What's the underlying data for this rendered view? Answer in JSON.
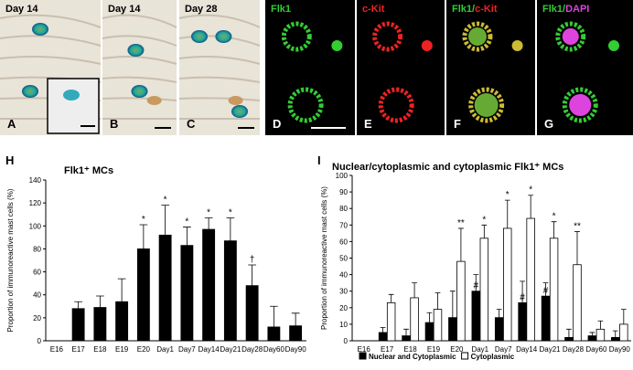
{
  "image_panels": [
    {
      "letter": "A",
      "caption": [
        {
          "text": "Day 14"
        }
      ]
    },
    {
      "letter": "B",
      "caption": [
        {
          "text": "Day 14"
        }
      ]
    },
    {
      "letter": "C",
      "caption": [
        {
          "text": "Day 28"
        }
      ]
    },
    {
      "letter": "D",
      "caption": [
        {
          "text": "Flk1"
        }
      ]
    },
    {
      "letter": "E",
      "caption": [
        {
          "text": "c-Kit"
        }
      ]
    },
    {
      "letter": "F",
      "caption": [
        {
          "text": "Flk1/"
        },
        {
          "text": "c-Kit"
        }
      ]
    },
    {
      "letter": "G",
      "caption": [
        {
          "text": "Flk1/"
        },
        {
          "text": "DAPI"
        }
      ]
    }
  ],
  "chart_data": [
    {
      "type": "bar",
      "panel": "H",
      "title": "Flk1⁺ MCs",
      "y_label": "Proportion of immunoreactive mast cells (%)",
      "categories": [
        "E16",
        "E17",
        "E18",
        "E19",
        "E20",
        "Day1",
        "Day7",
        "Day14",
        "Day21",
        "Day28",
        "Day60",
        "Day90"
      ],
      "values": [
        0,
        28,
        29,
        34,
        80,
        92,
        83,
        97,
        87,
        48,
        12,
        13
      ],
      "errors": [
        0,
        6,
        10,
        20,
        21,
        26,
        16,
        10,
        20,
        18,
        18,
        11
      ],
      "annotations": [
        null,
        null,
        null,
        null,
        "*",
        "*",
        "*",
        "*",
        "*",
        "†",
        null,
        null
      ],
      "color": "#000000",
      "ylim": [
        0,
        140
      ],
      "yticks": [
        0,
        20,
        40,
        60,
        80,
        100,
        120,
        140
      ]
    },
    {
      "type": "bar",
      "panel": "I",
      "title": "Nuclear/cytoplasmic and cytoplasmic Flk1⁺ MCs",
      "y_label": "Proportion of immunoreactive mast cells (%)",
      "categories": [
        "E16",
        "E17",
        "E18",
        "E19",
        "E20",
        "Day1",
        "Day7",
        "Day14",
        "Day21",
        "Day28",
        "Day60",
        "Day90"
      ],
      "series": [
        {
          "name": "Nuclear and Cytoplasmic",
          "color": "#000000",
          "values": [
            0,
            5,
            3,
            11,
            14,
            30,
            14,
            23,
            27,
            2,
            3,
            2
          ],
          "errors": [
            0,
            3,
            4,
            6,
            16,
            10,
            5,
            13,
            8,
            5,
            2,
            4
          ],
          "annotations": [
            null,
            null,
            null,
            null,
            null,
            "#",
            null,
            "#",
            "#",
            null,
            null,
            null
          ]
        },
        {
          "name": "Cytoplasmic",
          "color": "#ffffff",
          "values": [
            0,
            23,
            26,
            19,
            48,
            62,
            68,
            74,
            62,
            46,
            7,
            10
          ],
          "errors": [
            0,
            5,
            9,
            10,
            20,
            8,
            17,
            14,
            10,
            20,
            5,
            9
          ],
          "annotations": [
            null,
            null,
            null,
            null,
            "**",
            "*",
            "*",
            "*",
            "*",
            "**",
            null,
            null
          ]
        }
      ],
      "ylim": [
        0,
        100
      ],
      "yticks": [
        0,
        10,
        20,
        30,
        40,
        50,
        60,
        70,
        80,
        90,
        100
      ]
    }
  ]
}
